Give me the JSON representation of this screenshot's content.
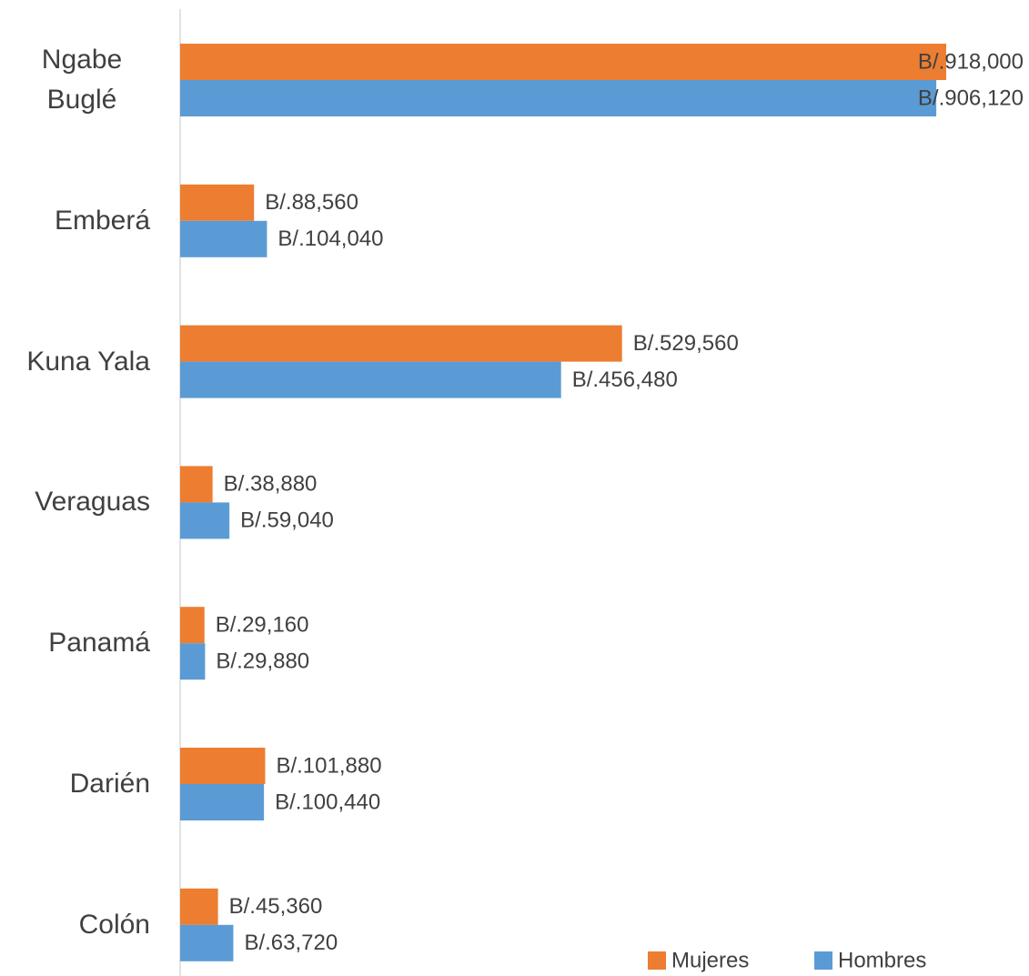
{
  "chart_data": {
    "type": "bar",
    "orientation": "horizontal",
    "categories": [
      "Ngabe Buglé",
      "Emberá",
      "Kuna Yala",
      "Veraguas",
      "Panamá",
      "Darién",
      "Colón"
    ],
    "series": [
      {
        "name": "Mujeres",
        "color": "#ED7D31",
        "values": [
          918000,
          88560,
          529560,
          38880,
          29160,
          101880,
          45360
        ],
        "value_labels": [
          "B/.918,000",
          "B/.88,560",
          "B/.529,560",
          "B/.38,880",
          "B/.29,160",
          "B/.101,880",
          "B/.45,360"
        ]
      },
      {
        "name": "Hombres",
        "color": "#5B9BD5",
        "values": [
          906120,
          104040,
          456480,
          59040,
          29880,
          100440,
          63720
        ],
        "value_labels": [
          "B/.906,120",
          "B/.104,040",
          "B/.456,480",
          "B/.59,040",
          "B/.29,880",
          "B/.100,440",
          "B/.63,720"
        ]
      }
    ],
    "legend": "bottom-right"
  }
}
